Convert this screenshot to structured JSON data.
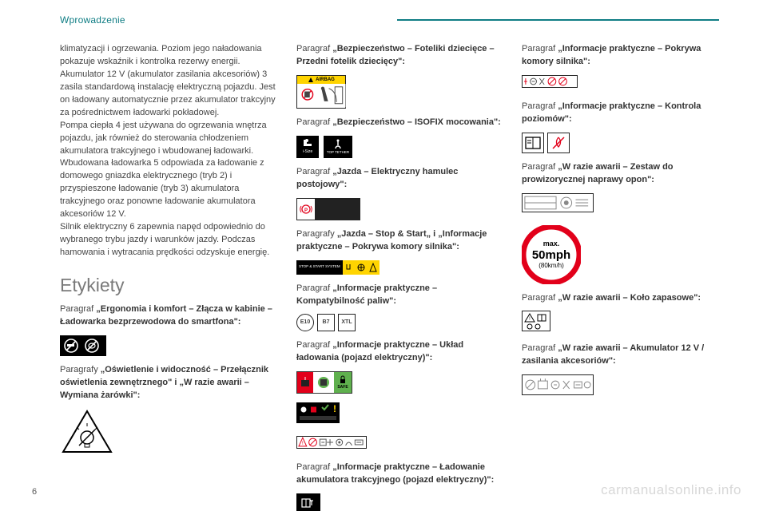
{
  "header": {
    "title": "Wprowadzenie"
  },
  "col1": {
    "body": "klimatyzacji i ogrzewania. Poziom jego naładowania pokazuje wskaźnik i kontrolka rezerwy energii. Akumulator 12 V (akumulator zasilania akcesoriów) 3 zasila standardową instalację elektryczną pojazdu. Jest on ładowany automatycznie przez akumulator trakcyjny za pośrednictwem ładowarki pokładowej.\nPompa ciepła 4 jest używana do ogrzewania wnętrza pojazdu, jak również do sterowania chłodzeniem akumulatora trakcyjnego i wbudowanej ładowarki.\nWbudowana ładowarka 5 odpowiada za ładowanie z domowego gniazdka elektrycznego (tryb 2) i przyspieszone ładowanie (tryb 3) akumulatora trakcyjnego oraz ponowne ładowanie akumulatora akcesoriów 12 V.\nSilnik elektryczny 6 zapewnia napęd odpowiednio do wybranego trybu jazdy i warunków jazdy. Podczas hamowania i wytracania prędkości odzyskuje energię.",
    "section_title": "Etykiety",
    "p1": "Paragraf „Ergonomia i komfort – Złącza w kabinie – Ładowarka bezprzewodowa do smartfona\":",
    "p2": "Paragrafy „Oświetlenie i widoczność – Przełącznik oświetlenia zewnętrznego\" i „W razie awarii – Wymiana żarówki\":"
  },
  "col2": {
    "p1": "Paragraf „Bezpieczeństwo – Foteliki dziecięce – Przedni fotelik dziecięcy\":",
    "p2": "Paragraf „Bezpieczeństwo – ISOFIX mocowania\":",
    "p3": "Paragraf „Jazda – Elektryczny hamulec postojowy\":",
    "p4": "Paragrafy „Jazda – Stop & Start„ i „Informacje praktyczne – Pokrywa komory silnika\":",
    "p5": "Paragraf „Informacje praktyczne – Kompatybilność paliw\":",
    "p6": "Paragraf „Informacje praktyczne – Układ ładowania (pojazd elektryczny)\":",
    "p7": "Paragraf „Informacje praktyczne – Ładowanie akumulatora trakcyjnego (pojazd elektryczny)\":",
    "airbag_label": "AIRBAG",
    "isofix_isize": "i-Size",
    "isofix_top": "TOP TETHER",
    "stopstart_label": "STOP & START SYSTEM",
    "fuel_e10": "E10",
    "fuel_b7": "B7",
    "fuel_xtl": "XTL",
    "safe_label": "SAFE"
  },
  "col3": {
    "p1": "Paragraf „Informacje praktyczne – Pokrywa komory silnika\":",
    "p2": "Paragraf „Informacje praktyczne – Kontrola poziomów\":",
    "p3": "Paragraf „W razie awarii – Zestaw do prowizorycznej naprawy opon\":",
    "p4": "Paragraf „W razie awarii – Koło zapasowe\":",
    "p5": "Paragraf „W razie awarii – Akumulator 12 V / zasilania akcesoriów\":",
    "speed_max": "max.",
    "speed_val": "50mph",
    "speed_sub": "(80km/h)"
  },
  "footer": {
    "page_num": "6",
    "watermark": "carmanualsonline.info"
  },
  "colors": {
    "accent": "#0f7d84",
    "text": "#3a3a3a",
    "section_grey": "#7a7a7a",
    "red": "#e2001a",
    "yellow": "#ffd400",
    "green_safe": "#5fb04e",
    "black": "#000000",
    "watermark": "#d8d8d8"
  }
}
